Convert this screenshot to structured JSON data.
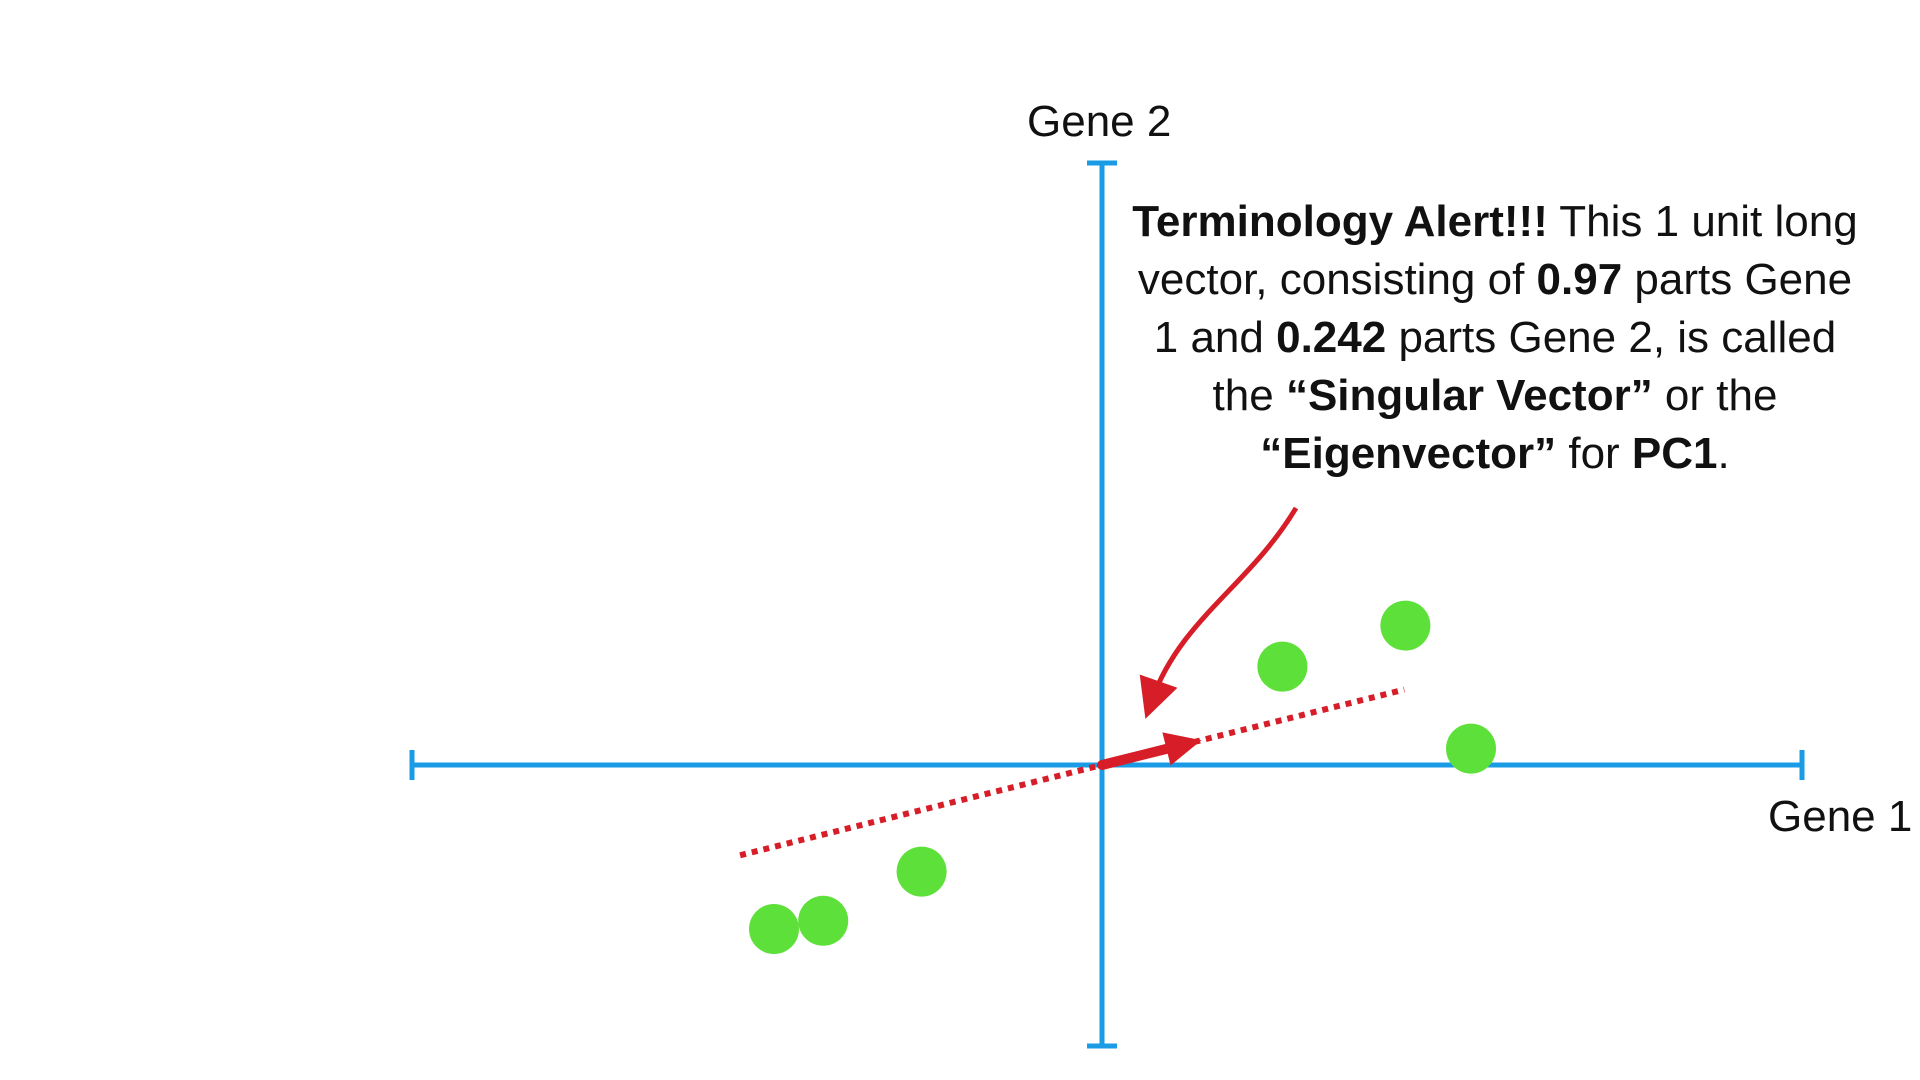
{
  "axes": {
    "x_label": "Gene 1",
    "y_label": "Gene 2",
    "color": "#1a9be6"
  },
  "points": {
    "color": "#5ee03a",
    "data": [
      {
        "gene1": -3.4,
        "gene2": -1.9
      },
      {
        "gene1": -2.2,
        "gene2": -1.3
      },
      {
        "gene1": -4.0,
        "gene2": -2.0
      },
      {
        "gene1": 2.2,
        "gene2": 1.2
      },
      {
        "gene1": 3.7,
        "gene2": 1.7
      },
      {
        "gene1": 4.5,
        "gene2": 0.2
      }
    ]
  },
  "singular_vector": {
    "gene1": 0.97,
    "gene2": 0.242,
    "color": "#d71e28"
  },
  "callout": {
    "part1_bold": "Terminology Alert!!!",
    "part2": " This 1 unit long vector, consisting of ",
    "part3_bold": "0.97",
    "part4": " parts Gene 1 and ",
    "part5_bold": "0.242",
    "part6": " parts Gene 2, is called the ",
    "part7_bold": "“Singular Vector”",
    "part8": " or the ",
    "part9_bold": "“Eigenvector”",
    "part10": " for ",
    "part11_bold": "PC1",
    "part12": "."
  }
}
